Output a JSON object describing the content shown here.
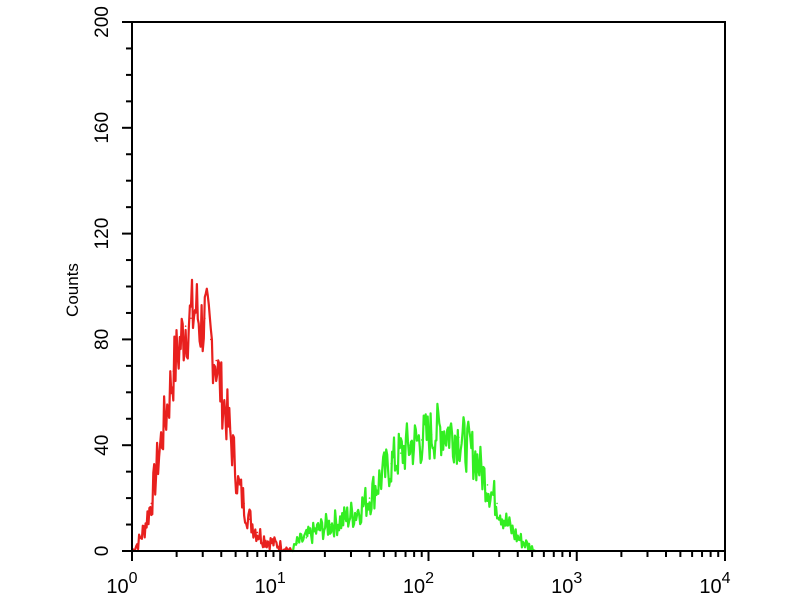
{
  "chart_data": {
    "type": "line",
    "title": "",
    "xlabel": "",
    "ylabel": "Counts",
    "x_scale": "log",
    "xlim": [
      1,
      10000
    ],
    "ylim": [
      0,
      200
    ],
    "grid": false,
    "x_ticks": [
      {
        "base": "10",
        "exp": "0"
      },
      {
        "base": "10",
        "exp": "1"
      },
      {
        "base": "10",
        "exp": "2"
      },
      {
        "base": "10",
        "exp": "3"
      },
      {
        "base": "10",
        "exp": "4"
      }
    ],
    "y_ticks": [
      "0",
      "40",
      "80",
      "120",
      "160",
      "200"
    ],
    "series": [
      {
        "color": "#e8201e",
        "x": [
          1.0,
          1.1,
          1.2,
          1.35,
          1.5,
          1.7,
          1.9,
          2.1,
          2.3,
          2.5,
          2.7,
          2.9,
          3.1,
          3.4,
          3.7,
          4.0,
          4.4,
          4.8,
          5.2,
          5.7,
          6.2,
          7.0,
          8.0,
          9.0,
          10.0,
          11.0,
          12.0
        ],
        "y": [
          0,
          3,
          8,
          18,
          35,
          52,
          68,
          78,
          85,
          88,
          92,
          85,
          88,
          80,
          72,
          60,
          50,
          38,
          25,
          18,
          12,
          7,
          4,
          3,
          2,
          1,
          0
        ]
      },
      {
        "color": "#33ee22",
        "x": [
          12,
          13,
          15,
          18,
          22,
          27,
          33,
          40,
          48,
          56,
          65,
          75,
          90,
          105,
          120,
          140,
          160,
          180,
          210,
          250,
          290,
          340,
          400,
          470,
          530
        ],
        "y": [
          0,
          3,
          5,
          8,
          10,
          12,
          15,
          20,
          28,
          33,
          37,
          40,
          42,
          44,
          46,
          45,
          43,
          40,
          35,
          25,
          18,
          10,
          5,
          2,
          0
        ]
      }
    ]
  }
}
